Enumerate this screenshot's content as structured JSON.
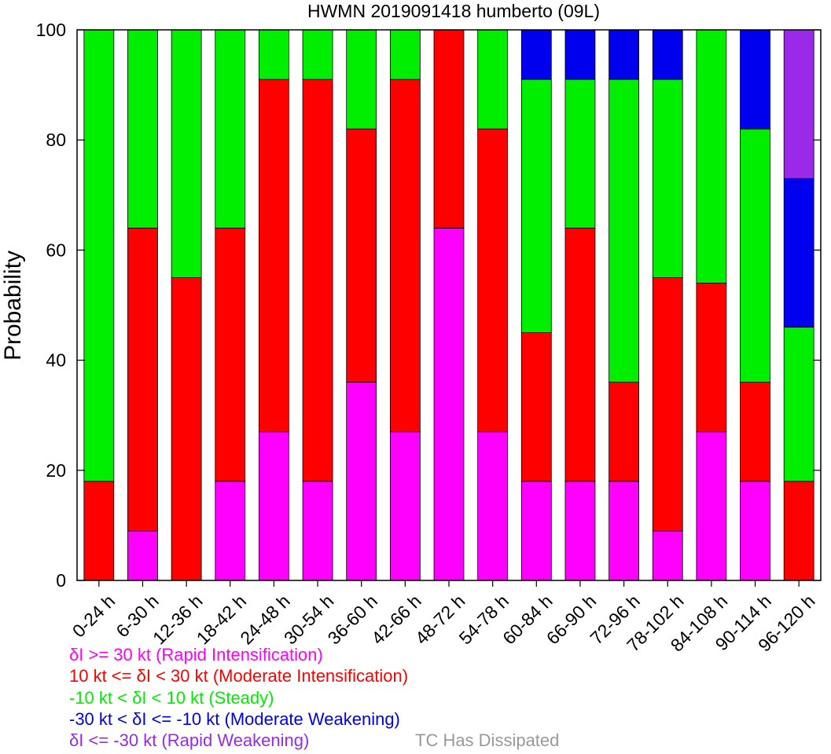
{
  "chart_data": {
    "type": "bar",
    "stacked": true,
    "title": "HWMN 2019091418 humberto (09L)",
    "xlabel": "",
    "ylabel": "Probability",
    "ylim": [
      0,
      100
    ],
    "yticks": [
      "0",
      "20",
      "40",
      "60",
      "80",
      "100"
    ],
    "grid": false,
    "categories": [
      "0-24 h",
      "6-30 h",
      "12-36 h",
      "18-42 h",
      "24-48 h",
      "30-54 h",
      "36-60 h",
      "42-66 h",
      "48-72 h",
      "54-78 h",
      "60-84 h",
      "66-90 h",
      "72-96 h",
      "78-102 h",
      "84-108 h",
      "90-114 h",
      "96-120 h"
    ],
    "series": [
      {
        "name": "δI >= 30 kt (Rapid Intensification)",
        "color": "#ff00ff",
        "values": [
          0,
          9,
          0,
          18,
          27,
          18,
          36,
          27,
          64,
          27,
          18,
          18,
          18,
          9,
          27,
          18,
          0
        ]
      },
      {
        "name": "10 kt <= δI < 30 kt (Moderate Intensification)",
        "color": "#ff0000",
        "values": [
          18,
          55,
          55,
          46,
          64,
          73,
          46,
          64,
          36,
          55,
          27,
          46,
          18,
          46,
          27,
          18,
          18
        ]
      },
      {
        "name": "-10 kt < δI < 10 kt (Steady)",
        "color": "#00ee00",
        "values": [
          82,
          36,
          45,
          36,
          9,
          9,
          18,
          9,
          0,
          18,
          46,
          27,
          55,
          36,
          46,
          46,
          28
        ]
      },
      {
        "name": "-30 kt < δI <= -10 kt (Moderate Weakening)",
        "color": "#0000ee",
        "values": [
          0,
          0,
          0,
          0,
          0,
          0,
          0,
          0,
          0,
          0,
          9,
          9,
          9,
          9,
          0,
          18,
          27
        ]
      },
      {
        "name": "δI <= -30 kt (Rapid Weakening)",
        "color": "#9a2ae8",
        "values": [
          0,
          0,
          0,
          0,
          0,
          0,
          0,
          0,
          0,
          0,
          0,
          0,
          0,
          0,
          0,
          0,
          27
        ]
      },
      {
        "name": "TC Has Dissipated",
        "color": "#999999",
        "values": [
          0,
          0,
          0,
          0,
          0,
          0,
          0,
          0,
          0,
          0,
          0,
          0,
          0,
          0,
          0,
          0,
          0
        ]
      }
    ]
  }
}
